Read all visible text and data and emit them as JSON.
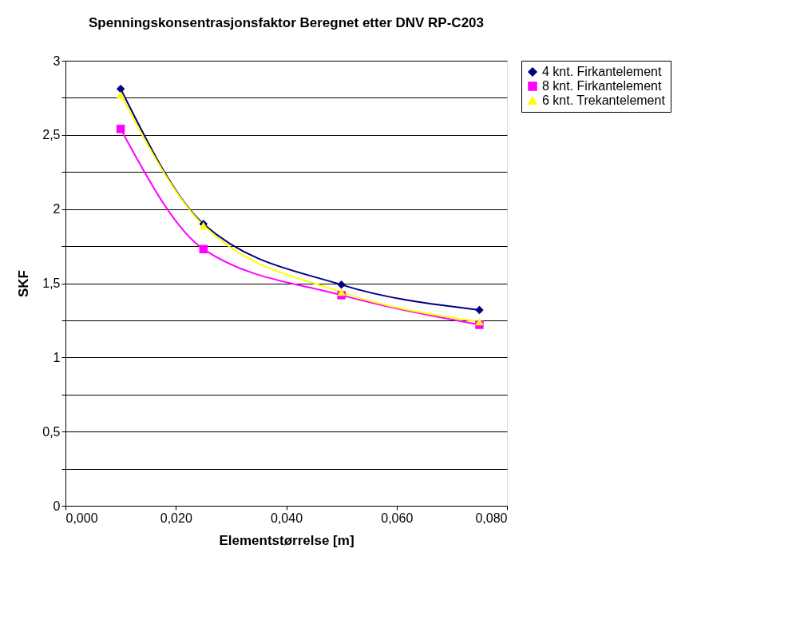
{
  "chart_data": {
    "type": "line",
    "title": "Spenningskonsentrasjonsfaktor Beregnet etter DNV RP-C203",
    "xlabel": "Elementstørrelse [m]",
    "ylabel": "SKF",
    "x": [
      0.01,
      0.025,
      0.05,
      0.075
    ],
    "series": [
      {
        "name": "4 knt. Firkantelement",
        "color": "#000080",
        "marker": "diamond",
        "values": [
          2.81,
          1.9,
          1.49,
          1.32
        ]
      },
      {
        "name": "8 knt. Firkantelement",
        "color": "#ff00ff",
        "marker": "square",
        "values": [
          2.54,
          1.73,
          1.42,
          1.22
        ]
      },
      {
        "name": "6 knt. Trekantelement",
        "color": "#ffff00",
        "marker": "triangle",
        "values": [
          2.77,
          1.89,
          1.44,
          1.24
        ]
      }
    ],
    "xlim": [
      0,
      0.08
    ],
    "xticks": [
      {
        "value": 0,
        "label": "0,000"
      },
      {
        "value": 0.02,
        "label": "0,020"
      },
      {
        "value": 0.04,
        "label": "0,040"
      },
      {
        "value": 0.06,
        "label": "0,060"
      },
      {
        "value": 0.08,
        "label": "0,080"
      }
    ],
    "ylim": [
      0,
      3
    ],
    "yticks": [
      0,
      {
        "value": 0.25,
        "label": null
      },
      {
        "value": 0.5,
        "label": "0,5"
      },
      {
        "value": 0.75,
        "label": null
      },
      1,
      {
        "value": 1.25,
        "label": null
      },
      {
        "value": 1.5,
        "label": "1,5"
      },
      {
        "value": 1.75,
        "label": null
      },
      2,
      {
        "value": 2.25,
        "label": null
      },
      {
        "value": 2.5,
        "label": "2,5"
      },
      {
        "value": 2.75,
        "label": null
      },
      3
    ],
    "grid": "y",
    "legend": "right"
  }
}
